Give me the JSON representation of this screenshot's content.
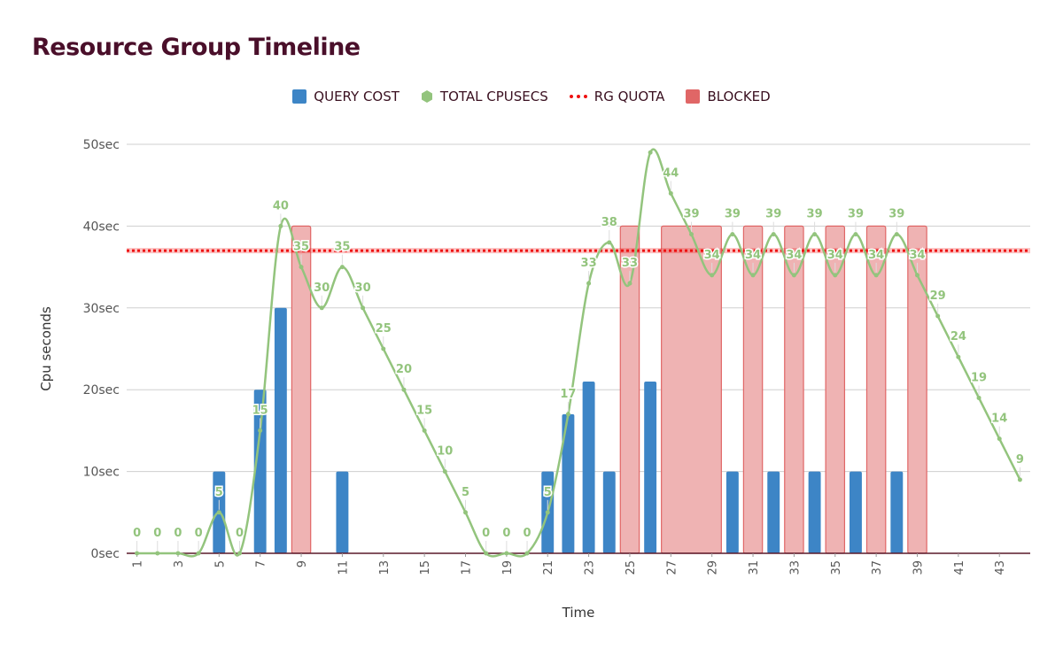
{
  "title": "Resource Group Timeline",
  "legend": {
    "query_cost": "QUERY COST",
    "total_cpusecs": "TOTAL CPUSECS",
    "rg_quota": "RG QUOTA",
    "blocked": "BLOCKED"
  },
  "colors": {
    "query_cost": "#3d85c6",
    "total_cpusecs": "#93c47d",
    "rg_quota": "#ee1111",
    "blocked": "#e06666",
    "blocked_fill": "#efb3b3",
    "title": "#4a0f2a"
  },
  "chart_data": {
    "type": "bar",
    "title": "Resource Group Timeline",
    "xlabel": "Time",
    "ylabel": "Cpu seconds",
    "ylim": [
      0,
      50
    ],
    "y_ticks": [
      "0sec",
      "10sec",
      "20sec",
      "30sec",
      "40sec",
      "50sec"
    ],
    "x_range": [
      1,
      44
    ],
    "x_tick_labels": [
      1,
      3,
      5,
      7,
      9,
      11,
      13,
      15,
      17,
      19,
      21,
      23,
      25,
      27,
      29,
      31,
      33,
      35,
      37,
      39,
      41,
      43
    ],
    "grid": true,
    "legend_position": "top",
    "series": [
      {
        "name": "QUERY COST",
        "type": "bar",
        "points": [
          [
            5,
            10
          ],
          [
            7,
            20
          ],
          [
            8,
            30
          ],
          [
            11,
            10
          ],
          [
            21,
            10
          ],
          [
            22,
            17
          ],
          [
            23,
            21
          ],
          [
            24,
            10
          ],
          [
            26,
            21
          ],
          [
            30,
            10
          ],
          [
            32,
            10
          ],
          [
            34,
            10
          ],
          [
            36,
            10
          ],
          [
            38,
            10
          ]
        ]
      },
      {
        "name": "TOTAL CPUSECS",
        "type": "line",
        "x": [
          1,
          2,
          3,
          4,
          5,
          6,
          7,
          8,
          9,
          10,
          11,
          12,
          13,
          14,
          15,
          16,
          17,
          18,
          19,
          20,
          21,
          22,
          23,
          24,
          25,
          26,
          27,
          28,
          29,
          30,
          31,
          32,
          33,
          34,
          35,
          36,
          37,
          38,
          39,
          40,
          41,
          42,
          43,
          44
        ],
        "y": [
          0,
          0,
          0,
          0,
          5,
          0,
          15,
          40,
          35,
          30,
          35,
          30,
          25,
          20,
          15,
          10,
          5,
          0,
          0,
          0,
          5,
          17,
          33,
          38,
          33,
          49,
          44,
          39,
          34,
          39,
          34,
          39,
          34,
          39,
          34,
          39,
          34,
          39,
          34,
          29,
          24,
          19,
          14,
          9
        ],
        "labels": [
          "0",
          "0",
          "0",
          "0",
          "5",
          "0",
          "15",
          "40",
          "35",
          "30",
          "35",
          "30",
          "25",
          "20",
          "15",
          "10",
          "5",
          "0",
          "0",
          "0",
          "5",
          "17",
          "33",
          "38",
          "33",
          "",
          "44",
          "39",
          "34",
          "39",
          "34",
          "39",
          "34",
          "39",
          "34",
          "39",
          "34",
          "39",
          "34",
          "29",
          "24",
          "19",
          "14",
          "9"
        ]
      },
      {
        "name": "RG QUOTA",
        "type": "line",
        "value": 37
      },
      {
        "name": "BLOCKED",
        "type": "bar",
        "spans": [
          [
            9,
            9,
            40
          ],
          [
            25,
            25,
            40
          ],
          [
            27,
            29,
            40
          ],
          [
            31,
            31,
            40
          ],
          [
            33,
            33,
            40
          ],
          [
            35,
            35,
            40
          ],
          [
            37,
            37,
            40
          ],
          [
            39,
            39,
            40
          ]
        ]
      }
    ]
  }
}
